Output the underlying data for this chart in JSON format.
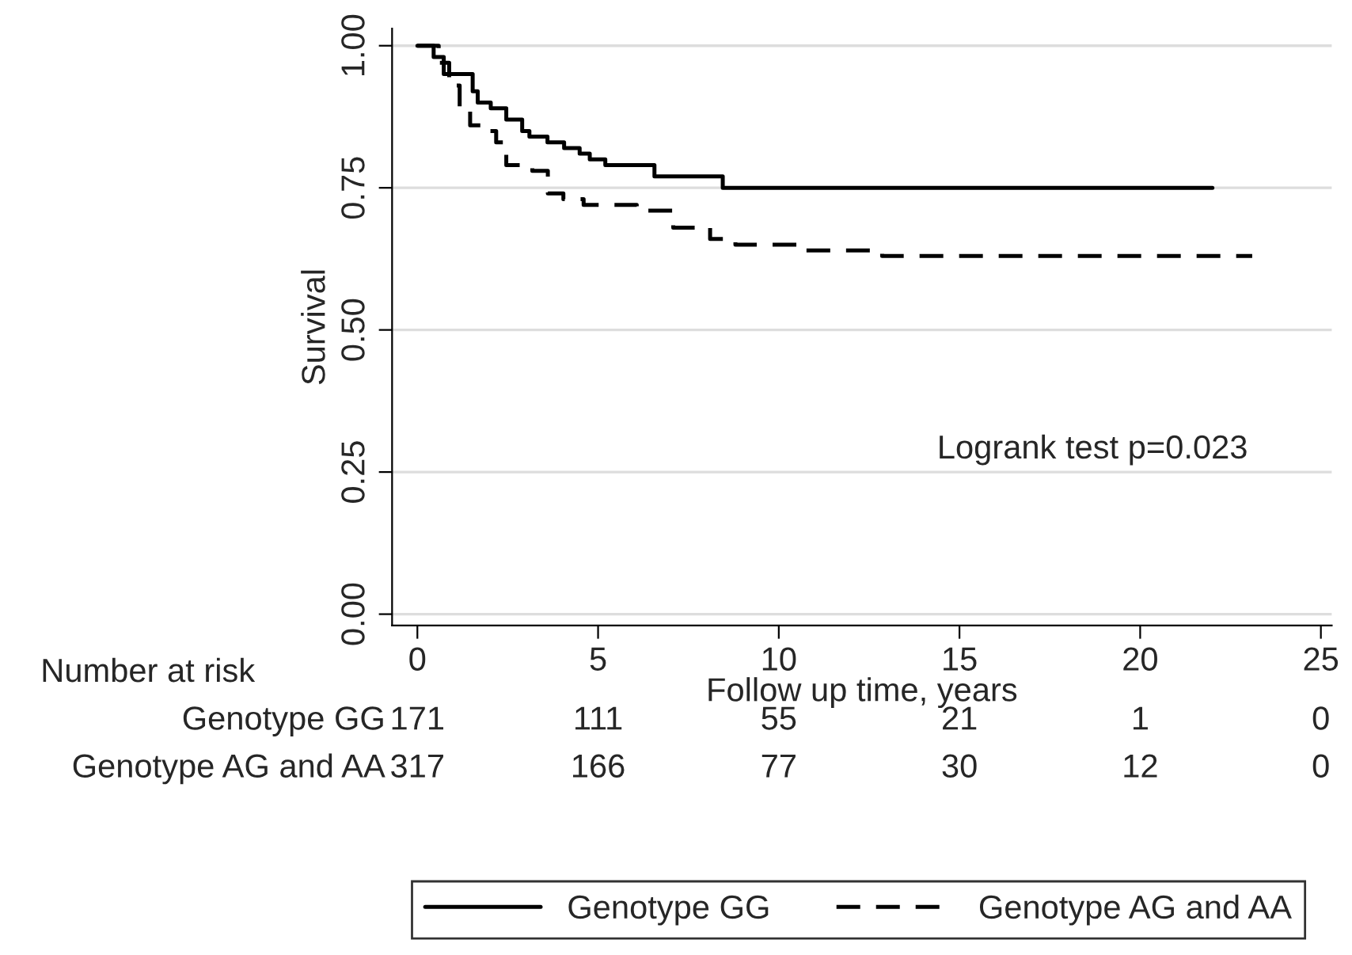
{
  "chart_data": {
    "type": "step",
    "xlabel": "Follow up time, years",
    "ylabel": "Survival",
    "series": [
      {
        "name": "Genotype GG",
        "color": "#000000",
        "line_style": "solid",
        "x": [
          0,
          0.45,
          0.73,
          1.53,
          1.67,
          2.03,
          2.46,
          2.9,
          3.1,
          3.6,
          4.06,
          4.49,
          4.77,
          5.2,
          6.2,
          6.56,
          8.2,
          8.45,
          22.0
        ],
        "values": [
          1.0,
          0.98,
          0.95,
          0.92,
          0.9,
          0.89,
          0.87,
          0.85,
          0.84,
          0.83,
          0.82,
          0.81,
          0.8,
          0.79,
          0.79,
          0.77,
          0.77,
          0.75,
          0.75
        ]
      },
      {
        "name": "Genotype AG and AA",
        "color": "#000000",
        "line_style": "dashed",
        "x": [
          0,
          0.59,
          0.88,
          1.17,
          1.46,
          1.82,
          2.18,
          2.46,
          3.18,
          3.61,
          4.04,
          4.6,
          5.5,
          6.07,
          6.64,
          7.08,
          7.66,
          8.1,
          8.8,
          9.8,
          10.5,
          12.86,
          23.1
        ],
        "values": [
          1.0,
          0.97,
          0.93,
          0.89,
          0.86,
          0.85,
          0.83,
          0.79,
          0.78,
          0.74,
          0.73,
          0.72,
          0.72,
          0.71,
          0.71,
          0.68,
          0.68,
          0.66,
          0.65,
          0.65,
          0.64,
          0.63,
          0.63
        ]
      }
    ],
    "xlim": [
      -0.7,
      25.3
    ],
    "xticks": [
      0,
      5,
      10,
      15,
      20,
      25
    ],
    "ylim": [
      -0.02,
      1.03
    ],
    "yticks": [
      {
        "value": 0,
        "label": "0.00"
      },
      {
        "value": 0.25,
        "label": "0.25"
      },
      {
        "value": 0.5,
        "label": "0.50"
      },
      {
        "value": 0.75,
        "label": "0.75"
      },
      {
        "value": 1,
        "label": "1.00"
      }
    ],
    "grid": "y",
    "legend": "bottom",
    "annotations": [
      "Logrank test p=0.023",
      "Number at risk",
      "Genotype GG",
      "171",
      "111",
      "55",
      "21",
      "1",
      "0",
      "Genotype AG and AA",
      "317",
      "166",
      "77",
      "30",
      "12",
      "0"
    ]
  }
}
